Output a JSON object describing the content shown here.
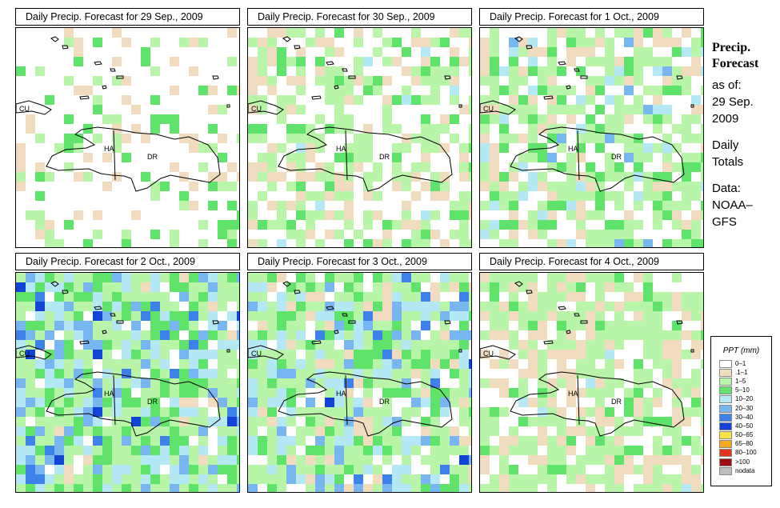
{
  "panels": [
    {
      "title": "Daily Precip. Forecast for  29 Sep., 2009",
      "seed": 11,
      "profile": "dry"
    },
    {
      "title": "Daily Precip. Forecast for  30 Sep., 2009",
      "seed": 23,
      "profile": "light"
    },
    {
      "title": "Daily Precip. Forecast for  1 Oct., 2009",
      "seed": 37,
      "profile": "moderate"
    },
    {
      "title": "Daily Precip. Forecast for 2 Oct., 2009",
      "seed": 51,
      "profile": "wet"
    },
    {
      "title": "Daily Precip. Forecast for 3 Oct., 2009",
      "seed": 67,
      "profile": "wet2"
    },
    {
      "title": "Daily Precip. Forecast for 4 Oct., 2009",
      "seed": 83,
      "profile": "light2"
    }
  ],
  "map_labels": {
    "cuba": "CU",
    "haiti": "HA",
    "dominican_republic": "DR"
  },
  "side": {
    "title_line1": "Precip.",
    "title_line2": "Forecast",
    "asof": "as of:",
    "date1": "29 Sep.",
    "date2": "2009",
    "totals1": "Daily",
    "totals2": "Totals",
    "data1": "Data:",
    "data2": "NOAA–",
    "data3": "GFS"
  },
  "legend": {
    "title": "PPT (mm)",
    "items": [
      {
        "label": "0–1",
        "color": "#ffffff"
      },
      {
        "label": ".1–1",
        "color": "#f1dcc0"
      },
      {
        "label": "1–5",
        "color": "#b9f5a9"
      },
      {
        "label": "5–10",
        "color": "#5fe36a"
      },
      {
        "label": "10–20",
        "color": "#b5e8f5"
      },
      {
        "label": "20–30",
        "color": "#77b6f0"
      },
      {
        "label": "30–40",
        "color": "#3d82ea"
      },
      {
        "label": "40–50",
        "color": "#1245d6"
      },
      {
        "label": "50–65",
        "color": "#f9e14a"
      },
      {
        "label": "65–80",
        "color": "#f6a81e"
      },
      {
        "label": "80–100",
        "color": "#e8341a"
      },
      {
        "label": ">100",
        "color": "#9c0d0d"
      },
      {
        "label": "nodata",
        "color": "#bdbdbd"
      }
    ]
  }
}
